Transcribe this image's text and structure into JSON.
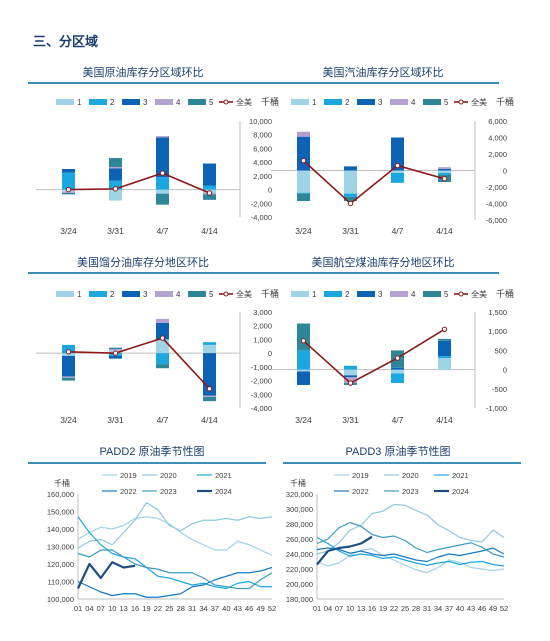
{
  "section": {
    "title": "三、分区域"
  },
  "colors": {
    "accent_rule": "#3a8fb7",
    "padd1": "#9fd3e6",
    "padd2": "#1ba7e0",
    "padd3": "#0c62b5",
    "padd4": "#b3a2cf",
    "padd5": "#2e8798",
    "total": "#8b1a1a",
    "grid": "#bfbfbf",
    "axis_text": "#3d3d3d"
  },
  "units": {
    "kbbl": "千桶"
  },
  "chart_data": [
    {
      "type": "bar",
      "title": "美国原油库存分区域环比",
      "stacked": true,
      "categories": [
        "3/24",
        "3/31",
        "4/7",
        "4/14"
      ],
      "ylim": [
        -4000,
        10000
      ],
      "yticks": [
        -4000,
        -2000,
        0,
        2000,
        4000,
        6000,
        8000,
        10000
      ],
      "ytick_labels": [
        "-4,000",
        "-2,000",
        "0",
        "2,000",
        "4,000",
        "6,000",
        "8,000",
        "10,000"
      ],
      "unit": "千桶",
      "legend": [
        "1",
        "2",
        "3",
        "4",
        "5",
        "全美"
      ],
      "series": [
        {
          "name": "1",
          "values": [
            -300,
            -1600,
            -600,
            -500
          ]
        },
        {
          "name": "2",
          "values": [
            2500,
            1300,
            1800,
            600
          ]
        },
        {
          "name": "3",
          "values": [
            500,
            1800,
            5800,
            3200
          ]
        },
        {
          "name": "4",
          "values": [
            -200,
            200,
            200,
            -200
          ]
        },
        {
          "name": "5",
          "values": [
            -200,
            1300,
            -1600,
            -800
          ]
        }
      ],
      "total": [
        0,
        100,
        2400,
        -500
      ]
    },
    {
      "type": "bar",
      "title": "美国汽油库存分区域环比",
      "stacked": true,
      "categories": [
        "3/24",
        "3/31",
        "4/7",
        "4/14"
      ],
      "ylim": [
        -6000,
        6000
      ],
      "yticks": [
        -6000,
        -4000,
        -2000,
        0,
        2000,
        4000,
        6000
      ],
      "ytick_labels": [
        "-6,000",
        "-4,000",
        "-2,000",
        "0",
        "2,000",
        "4,000",
        "6,000"
      ],
      "unit": "千桶",
      "legend": [
        "1",
        "2",
        "3",
        "4",
        "5",
        "全美"
      ],
      "series": [
        {
          "name": "1",
          "values": [
            -2700,
            -2800,
            -300,
            -300
          ]
        },
        {
          "name": "2",
          "values": [
            -100,
            -400,
            -1200,
            -200
          ]
        },
        {
          "name": "3",
          "values": [
            4100,
            500,
            4000,
            200
          ]
        },
        {
          "name": "4",
          "values": [
            600,
            0,
            0,
            200
          ]
        },
        {
          "name": "5",
          "values": [
            -900,
            -500,
            0,
            -900
          ]
        }
      ],
      "total": [
        1200,
        -4000,
        600,
        -1000
      ]
    },
    {
      "type": "bar",
      "title": "美国馏分油库存分地区环比",
      "stacked": true,
      "categories": [
        "3/24",
        "3/31",
        "4/7",
        "4/14"
      ],
      "ylim": [
        -4000,
        3000
      ],
      "yticks": [
        -4000,
        -3000,
        -2000,
        -1000,
        0,
        1000,
        2000,
        3000
      ],
      "ytick_labels": [
        "-4,000",
        "-3,000",
        "-2,000",
        "-1,000",
        "0",
        "1,000",
        "2,000",
        "3,000"
      ],
      "unit": "千桶",
      "legend": [
        "1",
        "2",
        "3",
        "4",
        "5",
        "全美"
      ],
      "series": [
        {
          "name": "1",
          "values": [
            -200,
            200,
            1000,
            600
          ]
        },
        {
          "name": "2",
          "values": [
            600,
            -200,
            -800,
            200
          ]
        },
        {
          "name": "3",
          "values": [
            -1500,
            -200,
            1200,
            -3100
          ]
        },
        {
          "name": "4",
          "values": [
            -100,
            100,
            300,
            -100
          ]
        },
        {
          "name": "5",
          "values": [
            -200,
            100,
            -300,
            -300
          ]
        }
      ],
      "total": [
        100,
        0,
        1100,
        -2600
      ]
    },
    {
      "type": "bar",
      "title": "美国航空煤油库存分地区环比",
      "stacked": true,
      "categories": [
        "3/24",
        "3/31",
        "4/7",
        "4/14"
      ],
      "ylim": [
        -1000,
        1500
      ],
      "yticks": [
        -1000,
        -500,
        0,
        500,
        1000,
        1500
      ],
      "ytick_labels": [
        "-1,000",
        "-500",
        "0",
        "500",
        "1,000",
        "1,500"
      ],
      "unit": "千桶",
      "legend": [
        "1",
        "2",
        "3",
        "4",
        "5",
        "全美"
      ],
      "series": [
        {
          "name": "1",
          "values": [
            -50,
            -150,
            -100,
            300
          ]
        },
        {
          "name": "2",
          "values": [
            500,
            100,
            -250,
            50
          ]
        },
        {
          "name": "3",
          "values": [
            -350,
            -50,
            50,
            400
          ]
        },
        {
          "name": "4",
          "values": [
            0,
            -150,
            0,
            0
          ]
        },
        {
          "name": "5",
          "values": [
            700,
            -50,
            450,
            50
          ]
        }
      ],
      "total": [
        750,
        -350,
        300,
        1050
      ]
    },
    {
      "type": "line",
      "title": "PADD2 原油季节性图",
      "unit": "千桶",
      "ylim": [
        100000,
        160000
      ],
      "yticks": [
        100000,
        110000,
        120000,
        130000,
        140000,
        150000,
        160000
      ],
      "ytick_labels": [
        "100,000",
        "110,000",
        "120,000",
        "130,000",
        "140,000",
        "150,000",
        "160,000"
      ],
      "xticks": [
        "01",
        "04",
        "07",
        "10",
        "13",
        "16",
        "19",
        "22",
        "25",
        "28",
        "31",
        "34",
        "37",
        "40",
        "43",
        "46",
        "49",
        "52"
      ],
      "legend": [
        "2019",
        "2020",
        "2021",
        "2022",
        "2023",
        "2024"
      ],
      "series": [
        {
          "name": "2019",
          "values": [
            134000,
            138000,
            141000,
            140000,
            142000,
            146000,
            147000,
            146000,
            143000,
            138000,
            134000,
            131000,
            128000,
            128000,
            133000,
            131000,
            128000,
            125000
          ]
        },
        {
          "name": "2020",
          "values": [
            129000,
            133000,
            134000,
            131000,
            138000,
            145000,
            155000,
            151000,
            142000,
            139000,
            143000,
            145000,
            145000,
            146000,
            145000,
            147000,
            146000,
            147000
          ]
        },
        {
          "name": "2021",
          "values": [
            147000,
            138000,
            131000,
            126000,
            124000,
            123000,
            118000,
            113000,
            112000,
            110000,
            108000,
            109000,
            107000,
            106000,
            109000,
            110000,
            107000,
            107000
          ]
        },
        {
          "name": "2022",
          "values": [
            110000,
            107000,
            104000,
            102000,
            103000,
            103000,
            101000,
            101000,
            102000,
            103000,
            107000,
            108000,
            111000,
            113000,
            115000,
            115000,
            116000,
            118000
          ]
        },
        {
          "name": "2023",
          "values": [
            126000,
            124000,
            128000,
            128000,
            124000,
            120000,
            118000,
            117000,
            115000,
            115000,
            115000,
            112000,
            108000,
            107000,
            106000,
            106000,
            111000,
            115000
          ]
        },
        {
          "name": "2024",
          "values": [
            106000,
            120000,
            112000,
            121000,
            118000,
            119000
          ]
        }
      ]
    },
    {
      "type": "line",
      "title": "PADD3 原油季节性图",
      "unit": "千桶",
      "ylim": [
        180000,
        320000
      ],
      "yticks": [
        180000,
        200000,
        220000,
        240000,
        260000,
        280000,
        300000,
        320000
      ],
      "ytick_labels": [
        "180,000",
        "200,000",
        "220,000",
        "240,000",
        "260,000",
        "280,000",
        "300,000",
        "320,000"
      ],
      "xticks": [
        "01",
        "04",
        "07",
        "10",
        "13",
        "16",
        "19",
        "22",
        "25",
        "28",
        "31",
        "34",
        "37",
        "40",
        "43",
        "46",
        "49",
        "52"
      ],
      "legend": [
        "2019",
        "2020",
        "2021",
        "2022",
        "2023",
        "2024"
      ],
      "series": [
        {
          "name": "2019",
          "values": [
            230000,
            224000,
            228000,
            238000,
            245000,
            247000,
            238000,
            232000,
            225000,
            219000,
            215000,
            222000,
            232000,
            229000,
            222000,
            220000,
            218000,
            220000
          ]
        },
        {
          "name": "2020",
          "values": [
            240000,
            244000,
            255000,
            272000,
            278000,
            294000,
            297000,
            306000,
            305000,
            298000,
            292000,
            279000,
            271000,
            262000,
            258000,
            256000,
            272000,
            262000
          ]
        },
        {
          "name": "2021",
          "values": [
            262000,
            254000,
            244000,
            237000,
            240000,
            238000,
            234000,
            236000,
            232000,
            228000,
            225000,
            228000,
            230000,
            226000,
            229000,
            230000,
            226000,
            224000
          ]
        },
        {
          "name": "2022",
          "values": [
            246000,
            248000,
            246000,
            241000,
            244000,
            240000,
            238000,
            240000,
            236000,
            232000,
            230000,
            236000,
            240000,
            238000,
            241000,
            244000,
            248000,
            240000
          ]
        },
        {
          "name": "2023",
          "values": [
            254000,
            260000,
            275000,
            282000,
            277000,
            266000,
            262000,
            264000,
            258000,
            248000,
            242000,
            246000,
            249000,
            252000,
            255000,
            249000,
            240000,
            236000
          ]
        },
        {
          "name": "2024",
          "values": [
            226000,
            244000,
            248000,
            250000,
            254000,
            263000
          ]
        }
      ]
    }
  ]
}
